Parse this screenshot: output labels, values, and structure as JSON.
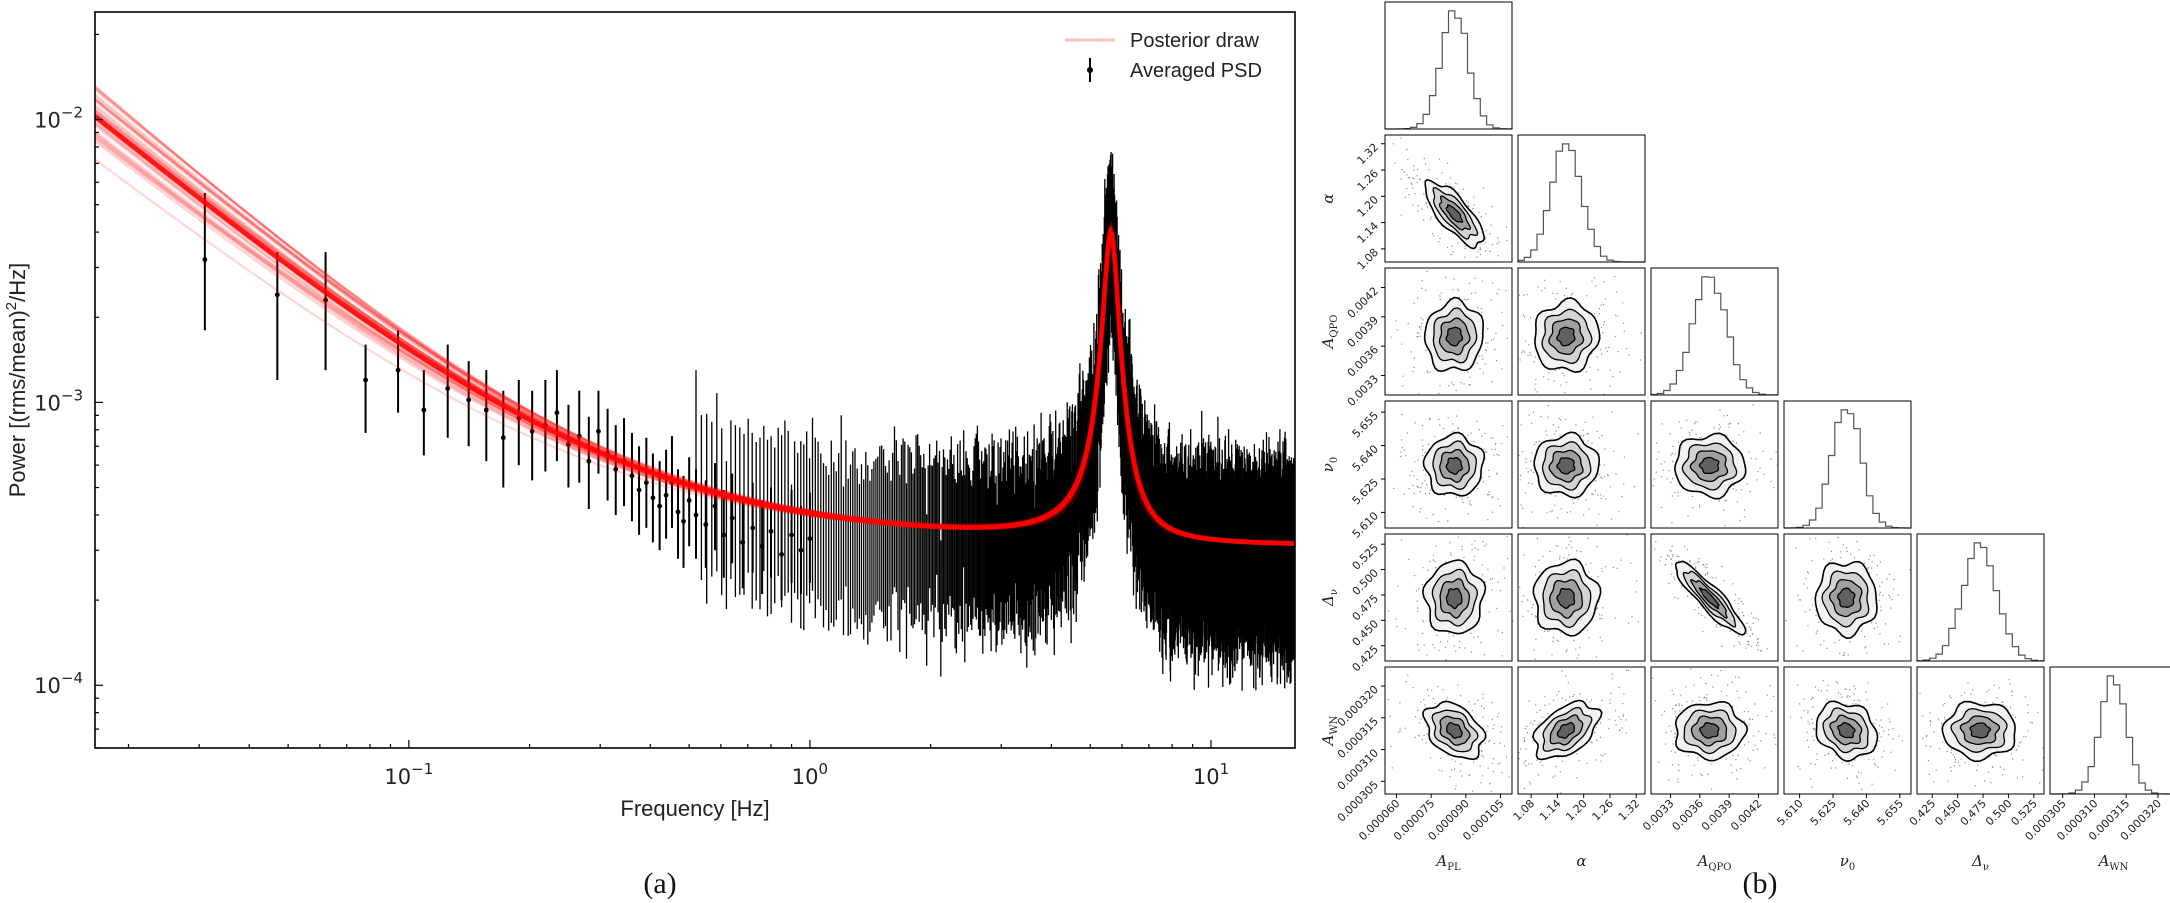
{
  "panel_letters": {
    "a": "(a)",
    "b": "(b)"
  },
  "chart_data": [
    {
      "type": "line",
      "panel": "(a)",
      "xlabel": "Frequency [Hz]",
      "ylabel_main": "Power [(rms/mean)",
      "ylabel_sup": "2",
      "ylabel_tail": "/Hz]",
      "xscale": "log",
      "yscale": "log",
      "xlim": [
        0.0165,
        16.2
      ],
      "ylim": [
        6e-05,
        0.024
      ],
      "xticks": [
        {
          "value": 0.1,
          "base": "10",
          "exp": "−1"
        },
        {
          "value": 1,
          "base": "10",
          "exp": "0"
        },
        {
          "value": 10,
          "base": "10",
          "exp": "1"
        }
      ],
      "yticks": [
        {
          "value": 0.0001,
          "base": "10",
          "exp": "−4"
        },
        {
          "value": 0.001,
          "base": "10",
          "exp": "−3"
        },
        {
          "value": 0.01,
          "base": "10",
          "exp": "−2"
        }
      ],
      "grid": false,
      "legend": {
        "position": "top-right",
        "entries": [
          "Posterior draw",
          "Averaged PSD"
        ]
      },
      "colors": {
        "posterior": "#ff0000",
        "psd": "#000000"
      },
      "model": {
        "A_PL": 8.5e-05,
        "alpha": 1.16,
        "A_QPO": 0.0037,
        "nu0": 5.63,
        "delta_nu": 0.47,
        "A_WN": 0.000312
      },
      "series": [
        {
          "name": "Averaged PSD",
          "style": "errorbar",
          "points": [
            {
              "x": 0.031,
              "y": 0.0032,
              "lo": 0.0018,
              "hi": 0.0055
            },
            {
              "x": 0.047,
              "y": 0.0024,
              "lo": 0.0012,
              "hi": 0.0034
            },
            {
              "x": 0.062,
              "y": 0.0023,
              "lo": 0.0013,
              "hi": 0.0034
            },
            {
              "x": 0.078,
              "y": 0.0012,
              "lo": 0.00078,
              "hi": 0.0016
            },
            {
              "x": 0.094,
              "y": 0.0013,
              "lo": 0.00092,
              "hi": 0.0018
            },
            {
              "x": 0.109,
              "y": 0.00094,
              "lo": 0.00065,
              "hi": 0.0013
            },
            {
              "x": 0.125,
              "y": 0.00112,
              "lo": 0.00075,
              "hi": 0.0016
            },
            {
              "x": 0.141,
              "y": 0.00102,
              "lo": 0.0007,
              "hi": 0.0014
            },
            {
              "x": 0.156,
              "y": 0.00094,
              "lo": 0.00062,
              "hi": 0.0013
            },
            {
              "x": 0.172,
              "y": 0.00075,
              "lo": 0.0005,
              "hi": 0.0011
            },
            {
              "x": 0.188,
              "y": 0.00088,
              "lo": 0.0006,
              "hi": 0.0012
            },
            {
              "x": 0.203,
              "y": 0.00079,
              "lo": 0.00053,
              "hi": 0.0011
            },
            {
              "x": 0.219,
              "y": 0.00083,
              "lo": 0.00057,
              "hi": 0.0012
            },
            {
              "x": 0.234,
              "y": 0.00092,
              "lo": 0.00062,
              "hi": 0.0013
            },
            {
              "x": 0.25,
              "y": 0.00071,
              "lo": 0.0005,
              "hi": 0.00098
            },
            {
              "x": 0.266,
              "y": 0.00076,
              "lo": 0.00052,
              "hi": 0.0011
            },
            {
              "x": 0.281,
              "y": 0.00062,
              "lo": 0.00042,
              "hi": 0.00089
            },
            {
              "x": 0.297,
              "y": 0.00079,
              "lo": 0.00056,
              "hi": 0.0011
            },
            {
              "x": 0.313,
              "y": 0.00066,
              "lo": 0.00045,
              "hi": 0.00095
            },
            {
              "x": 0.328,
              "y": 0.00058,
              "lo": 0.0004,
              "hi": 0.00083
            },
            {
              "x": 0.344,
              "y": 0.00062,
              "lo": 0.00043,
              "hi": 0.00088
            },
            {
              "x": 0.36,
              "y": 0.00055,
              "lo": 0.00038,
              "hi": 0.00078
            },
            {
              "x": 0.375,
              "y": 0.00049,
              "lo": 0.00034,
              "hi": 0.0007
            },
            {
              "x": 0.391,
              "y": 0.00052,
              "lo": 0.00036,
              "hi": 0.00075
            },
            {
              "x": 0.406,
              "y": 0.00046,
              "lo": 0.00032,
              "hi": 0.00066
            },
            {
              "x": 0.422,
              "y": 0.00043,
              "lo": 0.0003,
              "hi": 0.00062
            },
            {
              "x": 0.438,
              "y": 0.00047,
              "lo": 0.00033,
              "hi": 0.00068
            },
            {
              "x": 0.453,
              "y": 0.00052,
              "lo": 0.00036,
              "hi": 0.00076
            },
            {
              "x": 0.469,
              "y": 0.00041,
              "lo": 0.00028,
              "hi": 0.00058
            },
            {
              "x": 0.484,
              "y": 0.00038,
              "lo": 0.00026,
              "hi": 0.00055
            },
            {
              "x": 0.5,
              "y": 0.00045,
              "lo": 0.00031,
              "hi": 0.00064
            },
            {
              "x": 0.52,
              "y": 0.0004,
              "lo": 0.00028,
              "hi": 0.00058
            },
            {
              "x": 0.55,
              "y": 0.00037,
              "lo": 0.00026,
              "hi": 0.00053
            },
            {
              "x": 0.58,
              "y": 0.00043,
              "lo": 0.0003,
              "hi": 0.00061
            },
            {
              "x": 0.61,
              "y": 0.00034,
              "lo": 0.00024,
              "hi": 0.00049
            },
            {
              "x": 0.64,
              "y": 0.00039,
              "lo": 0.00027,
              "hi": 0.00056
            },
            {
              "x": 0.68,
              "y": 0.00032,
              "lo": 0.00022,
              "hi": 0.00046
            },
            {
              "x": 0.72,
              "y": 0.00036,
              "lo": 0.00025,
              "hi": 0.00052
            },
            {
              "x": 0.76,
              "y": 0.00031,
              "lo": 0.00021,
              "hi": 0.00045
            },
            {
              "x": 0.8,
              "y": 0.00035,
              "lo": 0.00024,
              "hi": 0.0005
            },
            {
              "x": 0.85,
              "y": 0.00029,
              "lo": 0.0002,
              "hi": 0.00042
            },
            {
              "x": 0.9,
              "y": 0.00034,
              "lo": 0.00023,
              "hi": 0.00049
            },
            {
              "x": 0.95,
              "y": 0.0003,
              "lo": 0.00021,
              "hi": 0.00043
            },
            {
              "x": 1.0,
              "y": 0.00033,
              "lo": 0.00023,
              "hi": 0.00048
            }
          ]
        },
        {
          "name": "Posterior draw",
          "style": "band",
          "n_draws": 40
        }
      ]
    },
    {
      "type": "scatter",
      "panel": "(b)",
      "subtype": "corner",
      "grid": false,
      "parameters": [
        {
          "label": "A",
          "sub": "PL",
          "mean": 8.5e-05,
          "sd": 6e-06,
          "ticks": [
            "0.000060",
            "0.000075",
            "0.000090",
            "0.000105"
          ],
          "tick_values": [
            6e-05,
            7.5e-05,
            9e-05,
            0.000105
          ],
          "range": [
            5.5e-05,
            0.00011
          ]
        },
        {
          "label": "α",
          "sub": "",
          "mean": 1.16,
          "sd": 0.035,
          "ticks": [
            "1.08",
            "1.14",
            "1.20",
            "1.26",
            "1.32"
          ],
          "tick_values": [
            1.08,
            1.14,
            1.2,
            1.26,
            1.32
          ],
          "range": [
            1.05,
            1.34
          ]
        },
        {
          "label": "A",
          "sub": "QPO",
          "mean": 0.0037,
          "sd": 0.00017,
          "ticks": [
            "0.0033",
            "0.0036",
            "0.0039",
            "0.0042"
          ],
          "tick_values": [
            0.0033,
            0.0036,
            0.0039,
            0.0042
          ],
          "range": [
            0.0031,
            0.0044
          ]
        },
        {
          "label": "ν",
          "sub": "0",
          "mean": 5.631,
          "sd": 0.0065,
          "ticks": [
            "5.610",
            "5.625",
            "5.640",
            "5.655"
          ],
          "tick_values": [
            5.61,
            5.625,
            5.64,
            5.655
          ],
          "range": [
            5.603,
            5.66
          ]
        },
        {
          "label": "Δ",
          "sub": "ν",
          "mean": 0.472,
          "sd": 0.017,
          "ticks": [
            "0.425",
            "0.450",
            "0.475",
            "0.500",
            "0.525"
          ],
          "tick_values": [
            0.425,
            0.45,
            0.475,
            0.5,
            0.525
          ],
          "range": [
            0.41,
            0.535
          ]
        },
        {
          "label": "A",
          "sub": "WN",
          "mean": 0.000313,
          "sd": 2.1e-06,
          "ticks": [
            "0.000305",
            "0.000310",
            "0.000315",
            "0.000320"
          ],
          "tick_values": [
            0.000305,
            0.00031,
            0.000315,
            0.00032
          ],
          "range": [
            0.000303,
            0.000323
          ]
        }
      ],
      "correlations": {
        "0-1": -0.75,
        "2-4": -0.9,
        "1-5": 0.45,
        "0-5": -0.35,
        "3-5": -0.2,
        "1-2": 0.05,
        "0-2": 0.05
      },
      "colors": {
        "points": "#000000",
        "hist": "#555555"
      }
    }
  ]
}
